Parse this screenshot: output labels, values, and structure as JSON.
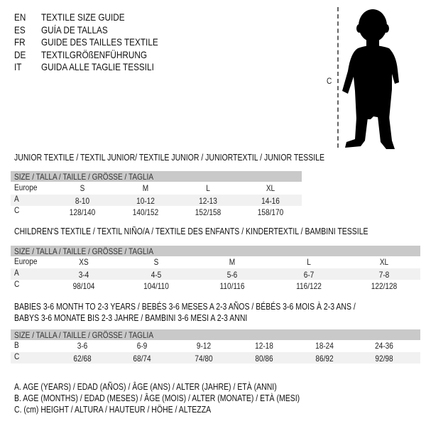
{
  "header": [
    {
      "code": "EN",
      "title": "TEXTILE SIZE GUIDE"
    },
    {
      "code": "ES",
      "title": "GUÍA DE TALLAS"
    },
    {
      "code": "FR",
      "title": "GUIDE DES TAILLES TEXTILE"
    },
    {
      "code": "DE",
      "title": "TEXTILGRÖßENFÜHRUNG"
    },
    {
      "code": "IT",
      "title": "GUIDA ALLE TAGLIE TESSILI"
    }
  ],
  "figure": {
    "label": "C",
    "icon": "child-silhouette"
  },
  "size_header": "SIZE / TALLA / TAILLE / GRÖSSE / TAGLIA",
  "junior": {
    "title": "JUNIOR TEXTILE / TEXTIL JUNIOR/ TEXTILE JUNIOR / JUNIORTEXTIL / JUNIOR TESSILE",
    "rows": [
      {
        "label": "Europe",
        "values": [
          "S",
          "M",
          "L",
          "XL"
        ]
      },
      {
        "label": "A",
        "values": [
          "8-10",
          "10-12",
          "12-13",
          "14-16"
        ]
      },
      {
        "label": "C",
        "values": [
          "128/140",
          "140/152",
          "152/158",
          "158/170"
        ]
      }
    ]
  },
  "children": {
    "title": "CHILDREN'S TEXTILE / TEXTIL NIÑO/A / TEXTILE DES ENFANTS / KINDERTEXTIL / BAMBINI TESSILE",
    "rows": [
      {
        "label": "Europe",
        "values": [
          "XS",
          "S",
          "M",
          "L",
          "XL"
        ]
      },
      {
        "label": "A",
        "values": [
          "3-4",
          "4-5",
          "5-6",
          "6-7",
          "7-8"
        ]
      },
      {
        "label": "C",
        "values": [
          "98/104",
          "104/110",
          "110/116",
          "116/122",
          "122/128"
        ]
      }
    ]
  },
  "babies": {
    "title_line1": "BABIES 3-6 MONTH TO 2-3 YEARS / BEBÉS 3-6 MESES A 2-3 AÑOS / BÉBÉS 3-6 MOIS À 2-3 ANS /",
    "title_line2": "BABYS 3-6 MONATE BIS 2-3 JAHRE / BAMBINI 3-6 MESI A 2-3 ANNI",
    "rows": [
      {
        "label": "B",
        "values": [
          "3-6",
          "6-9",
          "9-12",
          "12-18",
          "18-24",
          "24-36"
        ]
      },
      {
        "label": "C",
        "values": [
          "62/68",
          "68/74",
          "74/80",
          "80/86",
          "86/92",
          "92/98"
        ]
      }
    ]
  },
  "legend": [
    "A. AGE (YEARS) / EDAD (AÑOS) / ÂGE (ANS) / ALTER (JAHRE) / ETÀ (ANNI)",
    "B. AGE (MONTHS) / EDAD (MESES) / ÂGE (MOIS) / ALTER (MONATE) / ETÀ (MESI)",
    "C. (cm) HEIGHT / ALTURA / HAUTEUR / HÖHE / ALTEZZA"
  ]
}
